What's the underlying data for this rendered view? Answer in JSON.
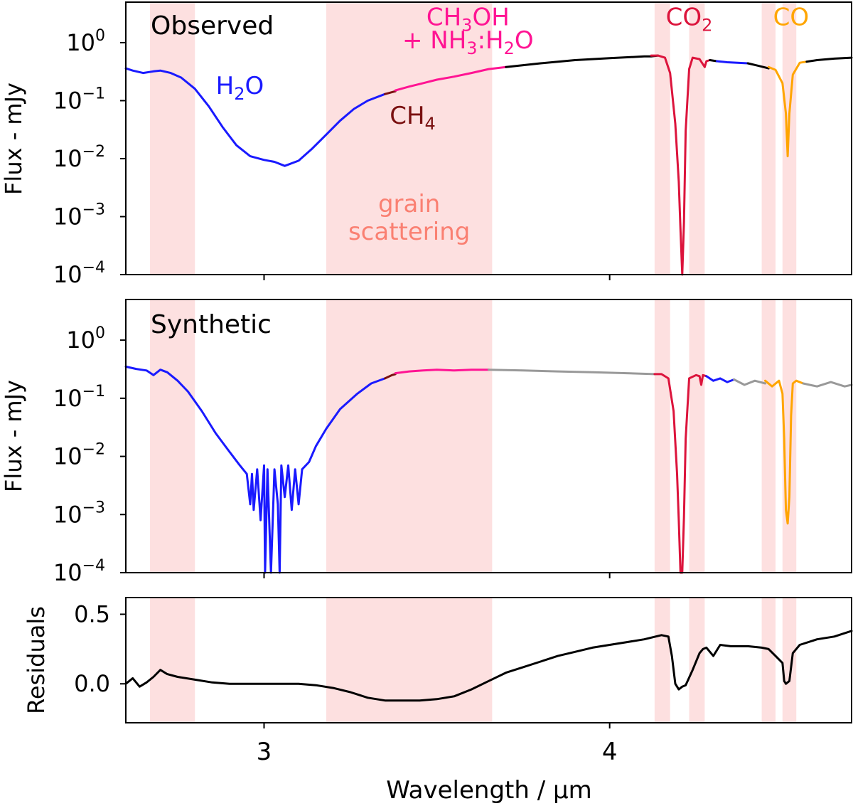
{
  "chart_data": [
    {
      "id": "observed",
      "type": "line",
      "panel_label": "Observed",
      "yscale": "log",
      "ylabel": "Flux - mJy",
      "xlim": [
        2.6,
        4.7
      ],
      "ylim": [
        0.0001,
        5
      ],
      "yticks": [
        {
          "base": "10",
          "exp": "0"
        },
        {
          "base": "10",
          "exp": "−1"
        },
        {
          "base": "10",
          "exp": "−2"
        },
        {
          "base": "10",
          "exp": "−3"
        },
        {
          "base": "10",
          "exp": "−4"
        }
      ],
      "shaded_regions": [
        [
          2.67,
          2.8
        ],
        [
          3.18,
          3.66
        ],
        [
          4.13,
          4.175
        ],
        [
          4.23,
          4.275
        ],
        [
          4.44,
          4.48
        ],
        [
          4.5,
          4.54
        ]
      ],
      "series": [
        {
          "name": "H2O",
          "color": "#1a1aff",
          "x": [
            2.6,
            2.62,
            2.65,
            2.68,
            2.7,
            2.73,
            2.76,
            2.8,
            2.84,
            2.88,
            2.92,
            2.96,
            3.0,
            3.03,
            3.06,
            3.1,
            3.14,
            3.18,
            3.22,
            3.26,
            3.3,
            3.35
          ],
          "y": [
            0.36,
            0.33,
            0.3,
            0.32,
            0.33,
            0.3,
            0.25,
            0.16,
            0.08,
            0.035,
            0.017,
            0.011,
            0.0095,
            0.0088,
            0.0075,
            0.0092,
            0.015,
            0.026,
            0.045,
            0.072,
            0.1,
            0.13
          ]
        },
        {
          "name": "CH4",
          "color": "#7a1010",
          "x": [
            3.35,
            3.36,
            3.37,
            3.38
          ],
          "y": [
            0.13,
            0.135,
            0.14,
            0.145
          ]
        },
        {
          "name": "CH3OH + NH3:H2O",
          "color": "#ff1493",
          "x": [
            3.38,
            3.42,
            3.46,
            3.5,
            3.55,
            3.6,
            3.65,
            3.7
          ],
          "y": [
            0.15,
            0.175,
            0.2,
            0.23,
            0.26,
            0.3,
            0.35,
            0.38
          ]
        },
        {
          "name": "continuum",
          "color": "#000000",
          "x": [
            3.7,
            3.8,
            3.9,
            4.0,
            4.1,
            4.12,
            4.14
          ],
          "y": [
            0.38,
            0.44,
            0.5,
            0.54,
            0.58,
            0.58,
            0.6
          ]
        },
        {
          "name": "CO2",
          "color": "#dc143c",
          "x": [
            4.12,
            4.14,
            4.16,
            4.175,
            4.19,
            4.2,
            4.205,
            4.21,
            4.215,
            4.22,
            4.23,
            4.24,
            4.26,
            4.275,
            4.28,
            4.29
          ],
          "y": [
            0.6,
            0.6,
            0.55,
            0.3,
            0.04,
            0.004,
            0.0006,
            0.0001,
            0.0008,
            0.03,
            0.35,
            0.55,
            0.52,
            0.38,
            0.48,
            0.5
          ]
        },
        {
          "name": "continuum",
          "color": "#000000",
          "x": [
            4.29,
            4.31
          ],
          "y": [
            0.5,
            0.48
          ]
        },
        {
          "name": "H2O",
          "color": "#1a1aff",
          "x": [
            4.31,
            4.34,
            4.37,
            4.4
          ],
          "y": [
            0.48,
            0.46,
            0.45,
            0.44
          ]
        },
        {
          "name": "continuum",
          "color": "#000000",
          "x": [
            4.4,
            4.43,
            4.46
          ],
          "y": [
            0.44,
            0.4,
            0.36
          ]
        },
        {
          "name": "CO",
          "color": "#ffa500",
          "x": [
            4.46,
            4.48,
            4.5,
            4.51,
            4.515,
            4.52,
            4.53,
            4.55,
            4.57
          ],
          "y": [
            0.38,
            0.34,
            0.2,
            0.06,
            0.011,
            0.06,
            0.28,
            0.45,
            0.47
          ]
        },
        {
          "name": "continuum",
          "color": "#000000",
          "x": [
            4.57,
            4.6,
            4.65,
            4.7
          ],
          "y": [
            0.47,
            0.5,
            0.53,
            0.55
          ]
        }
      ],
      "annotations": [
        {
          "text": "H2O",
          "color": "#1a1aff",
          "x": 2.93,
          "y": 0.13
        },
        {
          "text": "CH3OH",
          "color": "#ff1493",
          "x": 3.59,
          "y": 2.0
        },
        {
          "text": "+ NH3:H2O",
          "color": "#ff1493",
          "x": 3.59,
          "y": 0.8
        },
        {
          "text": "CH4",
          "color": "#7a1010",
          "x": 3.43,
          "y": 0.04
        },
        {
          "text": "grain",
          "color": "#fa8072",
          "x": 3.42,
          "y": 0.0012
        },
        {
          "text": "scattering",
          "color": "#fa8072",
          "x": 3.42,
          "y": 0.0004
        },
        {
          "text": "CO2",
          "color": "#dc143c",
          "x": 4.23,
          "y": 2.0
        },
        {
          "text": "CO",
          "color": "#ffa500",
          "x": 4.525,
          "y": 2.0
        }
      ]
    },
    {
      "id": "synthetic",
      "type": "line",
      "panel_label": "Synthetic",
      "yscale": "log",
      "ylabel": "Flux - mJy",
      "xlim": [
        2.6,
        4.7
      ],
      "ylim": [
        0.0001,
        5
      ],
      "yticks": [
        {
          "base": "10",
          "exp": "0"
        },
        {
          "base": "10",
          "exp": "−1"
        },
        {
          "base": "10",
          "exp": "−2"
        },
        {
          "base": "10",
          "exp": "−3"
        },
        {
          "base": "10",
          "exp": "−4"
        }
      ],
      "shaded_regions": [
        [
          2.67,
          2.8
        ],
        [
          3.18,
          3.66
        ],
        [
          4.13,
          4.175
        ],
        [
          4.23,
          4.275
        ],
        [
          4.44,
          4.48
        ],
        [
          4.5,
          4.54
        ]
      ],
      "series": [
        {
          "name": "H2O",
          "color": "#1a1aff",
          "x": [
            2.6,
            2.63,
            2.66,
            2.68,
            2.7,
            2.72,
            2.75,
            2.78,
            2.82,
            2.86,
            2.9,
            2.93,
            2.95,
            2.96,
            2.965,
            2.97,
            2.98,
            2.99,
            3.0,
            3.003,
            3.01,
            3.02,
            3.03,
            3.04,
            3.045,
            3.05,
            3.06,
            3.07,
            3.08,
            3.09,
            3.1,
            3.11,
            3.13,
            3.15,
            3.18,
            3.22,
            3.27,
            3.31,
            3.35
          ],
          "y": [
            0.35,
            0.32,
            0.3,
            0.25,
            0.31,
            0.28,
            0.2,
            0.13,
            0.06,
            0.025,
            0.012,
            0.007,
            0.005,
            0.0015,
            0.005,
            0.0012,
            0.006,
            0.0008,
            0.007,
            0.0001,
            0.006,
            0.0001,
            0.006,
            0.0015,
            0.0001,
            0.007,
            0.002,
            0.007,
            0.0012,
            0.006,
            0.0015,
            0.006,
            0.008,
            0.015,
            0.03,
            0.065,
            0.12,
            0.18,
            0.22
          ]
        },
        {
          "name": "CH4",
          "color": "#7a1010",
          "x": [
            3.35,
            3.37,
            3.38
          ],
          "y": [
            0.22,
            0.25,
            0.26
          ]
        },
        {
          "name": "CH3OH + NH3:H2O",
          "color": "#ff1493",
          "x": [
            3.38,
            3.42,
            3.46,
            3.5,
            3.55,
            3.6,
            3.65
          ],
          "y": [
            0.27,
            0.29,
            0.3,
            0.31,
            0.3,
            0.31,
            0.31
          ]
        },
        {
          "name": "model continuum",
          "color": "#999999",
          "x": [
            3.65,
            3.75,
            3.85,
            3.95,
            4.05,
            4.13
          ],
          "y": [
            0.31,
            0.3,
            0.29,
            0.28,
            0.27,
            0.26
          ]
        },
        {
          "name": "CO2",
          "color": "#dc143c",
          "x": [
            4.13,
            4.15,
            4.17,
            4.185,
            4.195,
            4.2,
            4.205,
            4.21,
            4.215,
            4.22,
            4.23,
            4.25,
            4.26,
            4.265,
            4.27,
            4.28
          ],
          "y": [
            0.26,
            0.26,
            0.22,
            0.06,
            0.005,
            0.0008,
            0.0001,
            0.0001,
            0.0009,
            0.02,
            0.22,
            0.25,
            0.24,
            0.17,
            0.25,
            0.24
          ]
        },
        {
          "name": "H2O",
          "color": "#1a1aff",
          "x": [
            4.28,
            4.3,
            4.32,
            4.34,
            4.36
          ],
          "y": [
            0.24,
            0.2,
            0.22,
            0.19,
            0.21
          ]
        },
        {
          "name": "model continuum",
          "color": "#999999",
          "x": [
            4.36,
            4.39,
            4.42,
            4.45
          ],
          "y": [
            0.21,
            0.17,
            0.2,
            0.18
          ]
        },
        {
          "name": "CO",
          "color": "#ffa500",
          "x": [
            4.45,
            4.47,
            4.49,
            4.5,
            4.505,
            4.51,
            4.515,
            4.52,
            4.525,
            4.53,
            4.54,
            4.56
          ],
          "y": [
            0.2,
            0.16,
            0.2,
            0.12,
            0.02,
            0.0012,
            0.0007,
            0.002,
            0.05,
            0.18,
            0.2,
            0.18
          ]
        },
        {
          "name": "model continuum",
          "color": "#999999",
          "x": [
            4.56,
            4.6,
            4.64,
            4.68,
            4.7
          ],
          "y": [
            0.18,
            0.16,
            0.19,
            0.16,
            0.17
          ]
        }
      ]
    },
    {
      "id": "residuals",
      "type": "line",
      "yscale": "linear",
      "ylabel": "Residuals",
      "xlabel": "Wavelength / μm",
      "xlim": [
        2.6,
        4.7
      ],
      "ylim": [
        -0.28,
        0.62
      ],
      "yticks": [
        {
          "value": 0.5,
          "label": "0.5"
        },
        {
          "value": 0.0,
          "label": "0.0"
        }
      ],
      "xticks": [
        {
          "value": 3,
          "label": "3"
        },
        {
          "value": 4,
          "label": "4"
        }
      ],
      "shaded_regions": [
        [
          2.67,
          2.8
        ],
        [
          3.18,
          3.66
        ],
        [
          4.13,
          4.175
        ],
        [
          4.23,
          4.275
        ],
        [
          4.44,
          4.48
        ],
        [
          4.5,
          4.54
        ]
      ],
      "series": [
        {
          "name": "residuals",
          "color": "#000000",
          "x": [
            2.6,
            2.62,
            2.64,
            2.66,
            2.68,
            2.7,
            2.72,
            2.75,
            2.8,
            2.85,
            2.9,
            2.95,
            3.0,
            3.05,
            3.1,
            3.15,
            3.2,
            3.25,
            3.3,
            3.35,
            3.4,
            3.45,
            3.5,
            3.55,
            3.6,
            3.65,
            3.7,
            3.75,
            3.8,
            3.85,
            3.9,
            3.95,
            4.0,
            4.05,
            4.1,
            4.15,
            4.17,
            4.18,
            4.19,
            4.2,
            4.21,
            4.22,
            4.24,
            4.26,
            4.27,
            4.28,
            4.3,
            4.32,
            4.35,
            4.4,
            4.44,
            4.46,
            4.48,
            4.5,
            4.505,
            4.51,
            4.52,
            4.53,
            4.55,
            4.6,
            4.65,
            4.7
          ],
          "y": [
            0.0,
            0.04,
            -0.02,
            0.01,
            0.05,
            0.1,
            0.07,
            0.05,
            0.03,
            0.01,
            0.0,
            0.0,
            0.0,
            0.0,
            0.0,
            -0.01,
            -0.03,
            -0.06,
            -0.1,
            -0.12,
            -0.12,
            -0.12,
            -0.11,
            -0.09,
            -0.04,
            0.02,
            0.08,
            0.12,
            0.16,
            0.2,
            0.23,
            0.26,
            0.28,
            0.3,
            0.32,
            0.35,
            0.34,
            0.2,
            0.0,
            -0.04,
            -0.02,
            -0.01,
            0.1,
            0.22,
            0.25,
            0.26,
            0.2,
            0.28,
            0.27,
            0.27,
            0.26,
            0.25,
            0.2,
            0.15,
            0.02,
            0.0,
            0.02,
            0.22,
            0.28,
            0.32,
            0.34,
            0.38
          ]
        }
      ]
    }
  ]
}
